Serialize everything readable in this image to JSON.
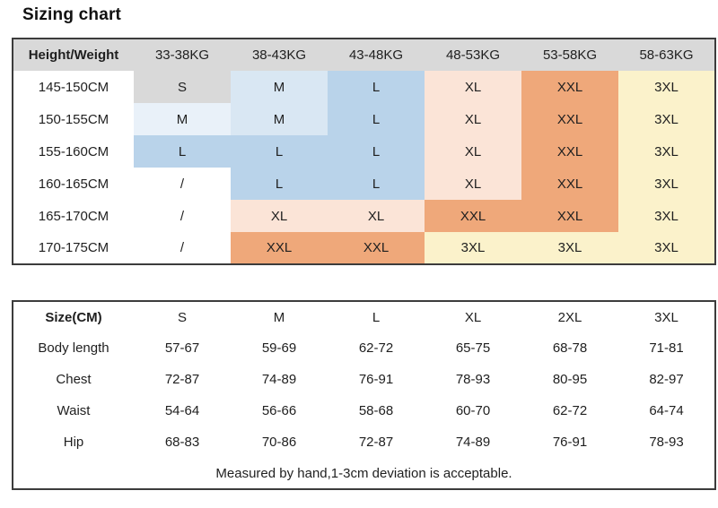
{
  "page": {
    "title": "Sizing chart"
  },
  "colors": {
    "border": "#3c3c3c",
    "text": "#1f1f1f",
    "header_bg": "#d9d9d9",
    "size_fills": {
      "S": "#d9d9d9",
      "M": "#d9e7f3",
      "M_light": "#e9f1f9",
      "L": "#b9d3ea",
      "XL": "#fbe4d7",
      "XXL": "#efa87a",
      "3XL": "#fbf2cb",
      "none": "transparent"
    }
  },
  "size_matrix": {
    "corner_label": "Height/Weight",
    "weight_headers": [
      "33-38KG",
      "38-43KG",
      "43-48KG",
      "48-53KG",
      "53-58KG",
      "58-63KG"
    ],
    "rows": [
      {
        "height": "145-150CM",
        "cells": [
          {
            "label": "S",
            "fill": "S"
          },
          {
            "label": "M",
            "fill": "M"
          },
          {
            "label": "L",
            "fill": "L"
          },
          {
            "label": "XL",
            "fill": "XL"
          },
          {
            "label": "XXL",
            "fill": "XXL"
          },
          {
            "label": "3XL",
            "fill": "3XL"
          }
        ]
      },
      {
        "height": "150-155CM",
        "cells": [
          {
            "label": "M",
            "fill": "M_light"
          },
          {
            "label": "M",
            "fill": "M"
          },
          {
            "label": "L",
            "fill": "L"
          },
          {
            "label": "XL",
            "fill": "XL"
          },
          {
            "label": "XXL",
            "fill": "XXL"
          },
          {
            "label": "3XL",
            "fill": "3XL"
          }
        ]
      },
      {
        "height": "155-160CM",
        "cells": [
          {
            "label": "L",
            "fill": "L"
          },
          {
            "label": "L",
            "fill": "L"
          },
          {
            "label": "L",
            "fill": "L"
          },
          {
            "label": "XL",
            "fill": "XL"
          },
          {
            "label": "XXL",
            "fill": "XXL"
          },
          {
            "label": "3XL",
            "fill": "3XL"
          }
        ]
      },
      {
        "height": "160-165CM",
        "cells": [
          {
            "label": "/",
            "fill": "none"
          },
          {
            "label": "L",
            "fill": "L"
          },
          {
            "label": "L",
            "fill": "L"
          },
          {
            "label": "XL",
            "fill": "XL"
          },
          {
            "label": "XXL",
            "fill": "XXL"
          },
          {
            "label": "3XL",
            "fill": "3XL"
          }
        ]
      },
      {
        "height": "165-170CM",
        "cells": [
          {
            "label": "/",
            "fill": "none"
          },
          {
            "label": "XL",
            "fill": "XL"
          },
          {
            "label": "XL",
            "fill": "XL"
          },
          {
            "label": "XXL",
            "fill": "XXL"
          },
          {
            "label": "XXL",
            "fill": "XXL"
          },
          {
            "label": "3XL",
            "fill": "3XL"
          }
        ]
      },
      {
        "height": "170-175CM",
        "cells": [
          {
            "label": "/",
            "fill": "none"
          },
          {
            "label": "XXL",
            "fill": "XXL"
          },
          {
            "label": "XXL",
            "fill": "XXL"
          },
          {
            "label": "3XL",
            "fill": "3XL"
          },
          {
            "label": "3XL",
            "fill": "3XL"
          },
          {
            "label": "3XL",
            "fill": "3XL"
          }
        ]
      }
    ]
  },
  "measurements": {
    "corner_label": "Size(CM)",
    "size_headers": [
      "S",
      "M",
      "L",
      "XL",
      "2XL",
      "3XL"
    ],
    "rows": [
      {
        "label": "Body length",
        "values": [
          "57-67",
          "59-69",
          "62-72",
          "65-75",
          "68-78",
          "71-81"
        ]
      },
      {
        "label": "Chest",
        "values": [
          "72-87",
          "74-89",
          "76-91",
          "78-93",
          "80-95",
          "82-97"
        ]
      },
      {
        "label": "Waist",
        "values": [
          "54-64",
          "56-66",
          "58-68",
          "60-70",
          "62-72",
          "64-74"
        ]
      },
      {
        "label": "Hip",
        "values": [
          "68-83",
          "70-86",
          "72-87",
          "74-89",
          "76-91",
          "78-93"
        ]
      }
    ],
    "note": "Measured by hand,1-3cm deviation is acceptable."
  },
  "chart_data": [
    {
      "type": "table",
      "title": "Sizing chart",
      "columns": [
        "Height/Weight",
        "33-38KG",
        "38-43KG",
        "43-48KG",
        "48-53KG",
        "53-58KG",
        "58-63KG"
      ],
      "rows": [
        [
          "145-150CM",
          "S",
          "M",
          "L",
          "XL",
          "XXL",
          "3XL"
        ],
        [
          "150-155CM",
          "M",
          "M",
          "L",
          "XL",
          "XXL",
          "3XL"
        ],
        [
          "155-160CM",
          "L",
          "L",
          "L",
          "XL",
          "XXL",
          "3XL"
        ],
        [
          "160-165CM",
          "/",
          "L",
          "L",
          "XL",
          "XXL",
          "3XL"
        ],
        [
          "165-170CM",
          "/",
          "XL",
          "XL",
          "XXL",
          "XXL",
          "3XL"
        ],
        [
          "170-175CM",
          "/",
          "XXL",
          "XXL",
          "3XL",
          "3XL",
          "3XL"
        ]
      ]
    },
    {
      "type": "table",
      "title": "",
      "columns": [
        "Size(CM)",
        "S",
        "M",
        "L",
        "XL",
        "2XL",
        "3XL"
      ],
      "rows": [
        [
          "Body length",
          "57-67",
          "59-69",
          "62-72",
          "65-75",
          "68-78",
          "71-81"
        ],
        [
          "Chest",
          "72-87",
          "74-89",
          "76-91",
          "78-93",
          "80-95",
          "82-97"
        ],
        [
          "Waist",
          "54-64",
          "56-66",
          "58-68",
          "60-70",
          "62-72",
          "64-74"
        ],
        [
          "Hip",
          "68-83",
          "70-86",
          "72-87",
          "74-89",
          "76-91",
          "78-93"
        ]
      ],
      "annotations": [
        "Measured by hand,1-3cm deviation is acceptable."
      ]
    }
  ]
}
